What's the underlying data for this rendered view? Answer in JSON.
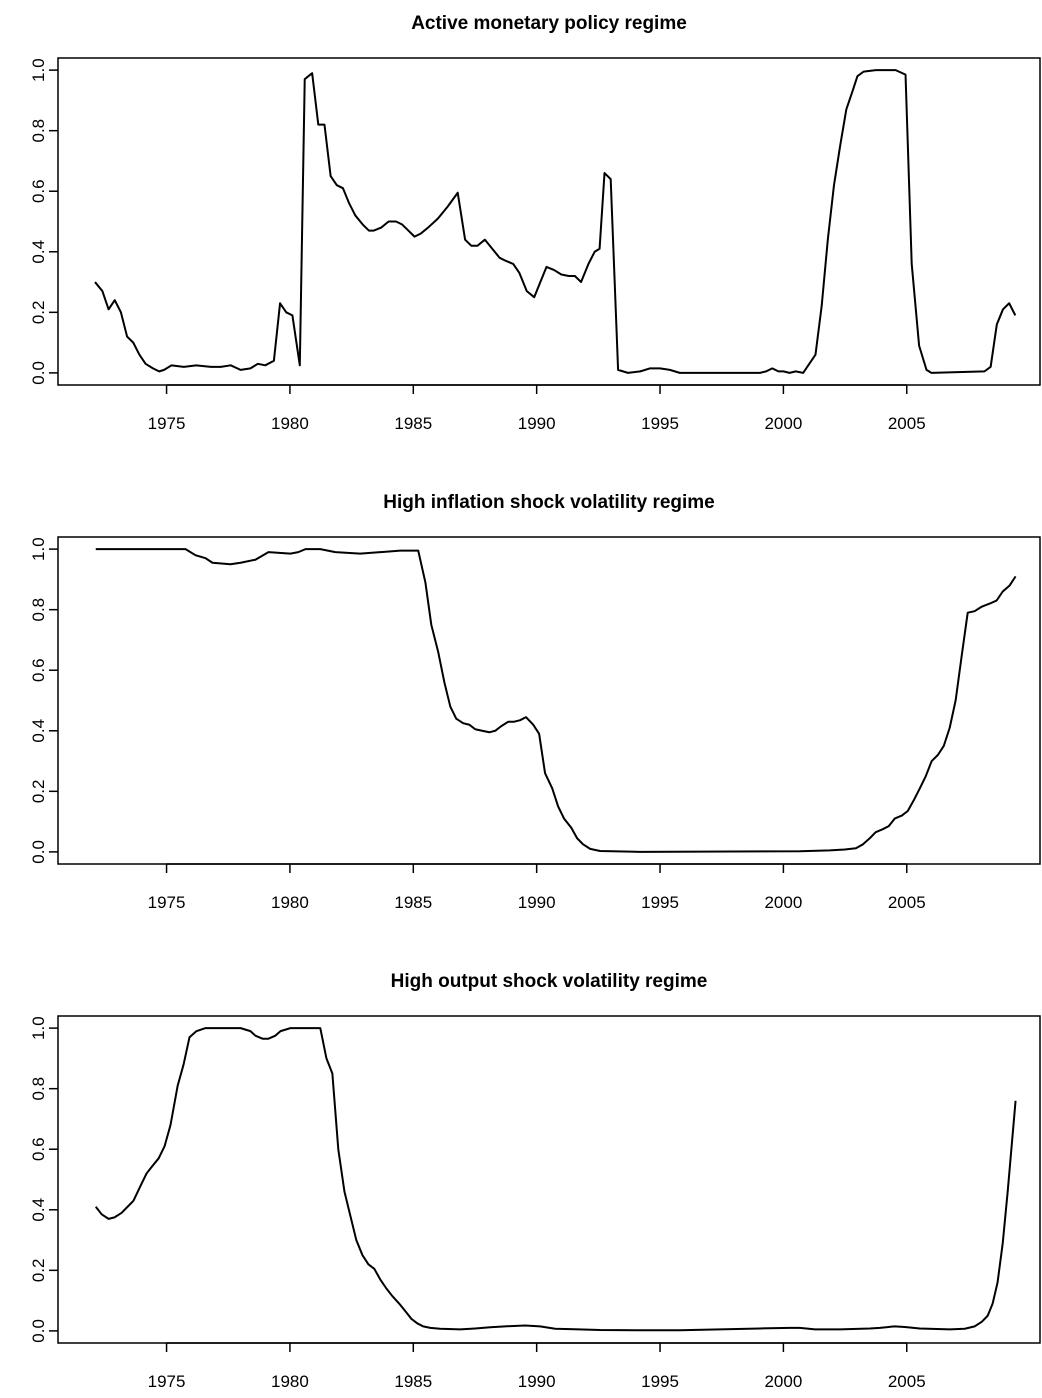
{
  "chart_data": [
    {
      "type": "line",
      "title": "Active monetary policy regime",
      "color": "#000000",
      "xlim": [
        1970.6,
        2010.4
      ],
      "ylim": [
        -0.04,
        1.04
      ],
      "xticks": [
        1975,
        1980,
        1985,
        1990,
        1995,
        2000,
        2005
      ],
      "yticks": [
        {
          "value": 0,
          "label": "0.0"
        },
        {
          "value": 0.2,
          "label": "0.2"
        },
        {
          "value": 0.4,
          "label": "0.4"
        },
        {
          "value": 0.6,
          "label": "0.6"
        },
        {
          "value": 0.8,
          "label": "0.8"
        },
        {
          "value": 1,
          "label": "1.0"
        }
      ],
      "x": [
        1972.1,
        1972.4,
        1972.65,
        1972.9,
        1973.15,
        1973.4,
        1973.65,
        1973.9,
        1974.15,
        1974.45,
        1974.7,
        1974.9,
        1975.2,
        1975.7,
        1976.2,
        1976.8,
        1977.2,
        1977.6,
        1978.0,
        1978.4,
        1978.7,
        1979.0,
        1979.35,
        1979.6,
        1979.85,
        1980.1,
        1980.4,
        1980.6,
        1980.9,
        1981.15,
        1981.4,
        1981.65,
        1981.9,
        1982.15,
        1982.4,
        1982.65,
        1982.95,
        1983.2,
        1983.4,
        1983.7,
        1984.0,
        1984.3,
        1984.55,
        1984.8,
        1985.05,
        1985.3,
        1985.6,
        1986.0,
        1986.4,
        1986.8,
        1987.1,
        1987.35,
        1987.6,
        1987.9,
        1988.2,
        1988.5,
        1988.75,
        1989.05,
        1989.3,
        1989.6,
        1989.9,
        1990.15,
        1990.4,
        1990.7,
        1991.0,
        1991.3,
        1991.55,
        1991.8,
        1992.1,
        1992.35,
        1992.55,
        1992.75,
        1993.0,
        1993.3,
        1993.7,
        1994.2,
        1994.6,
        1995.0,
        1995.4,
        1995.8,
        1997.4,
        1999.05,
        1999.3,
        1999.55,
        1999.8,
        2000.0,
        2000.25,
        2000.5,
        2000.8,
        2001.05,
        2001.3,
        2001.55,
        2001.8,
        2002.05,
        2002.3,
        2002.55,
        2002.8,
        2003.0,
        2003.25,
        2003.75,
        2004.55,
        2004.95,
        2005.2,
        2005.5,
        2005.8,
        2006.0,
        2008.15,
        2008.4,
        2008.65,
        2008.9,
        2009.15,
        2009.4
      ],
      "values": [
        0.3,
        0.27,
        0.21,
        0.24,
        0.2,
        0.12,
        0.1,
        0.06,
        0.03,
        0.015,
        0.005,
        0.01,
        0.025,
        0.02,
        0.025,
        0.02,
        0.02,
        0.025,
        0.01,
        0.015,
        0.03,
        0.025,
        0.04,
        0.23,
        0.2,
        0.19,
        0.025,
        0.97,
        0.99,
        0.82,
        0.82,
        0.65,
        0.62,
        0.61,
        0.56,
        0.52,
        0.49,
        0.47,
        0.47,
        0.48,
        0.5,
        0.5,
        0.49,
        0.47,
        0.45,
        0.46,
        0.48,
        0.51,
        0.55,
        0.595,
        0.44,
        0.42,
        0.42,
        0.44,
        0.41,
        0.38,
        0.37,
        0.36,
        0.33,
        0.27,
        0.25,
        0.3,
        0.35,
        0.34,
        0.325,
        0.32,
        0.32,
        0.3,
        0.36,
        0.4,
        0.41,
        0.66,
        0.64,
        0.01,
        0.0,
        0.005,
        0.015,
        0.015,
        0.01,
        0.0,
        0.0,
        0.0,
        0.005,
        0.015,
        0.005,
        0.005,
        0.0,
        0.005,
        0.0,
        0.03,
        0.06,
        0.22,
        0.44,
        0.62,
        0.75,
        0.87,
        0.93,
        0.98,
        0.995,
        1.0,
        1.0,
        0.985,
        0.36,
        0.09,
        0.01,
        0.0,
        0.005,
        0.02,
        0.16,
        0.21,
        0.23,
        0.19
      ]
    },
    {
      "type": "line",
      "title": "High inflation shock volatility regime",
      "color": "#000000",
      "xlim": [
        1970.6,
        2010.4
      ],
      "ylim": [
        -0.04,
        1.04
      ],
      "xticks": [
        1975,
        1980,
        1985,
        1990,
        1995,
        2000,
        2005
      ],
      "yticks": [
        {
          "value": 0,
          "label": "0.0"
        },
        {
          "value": 0.2,
          "label": "0.2"
        },
        {
          "value": 0.4,
          "label": "0.4"
        },
        {
          "value": 0.6,
          "label": "0.6"
        },
        {
          "value": 0.8,
          "label": "0.8"
        },
        {
          "value": 1,
          "label": "1.0"
        }
      ],
      "x": [
        1972.13,
        1974.35,
        1975.77,
        1976.17,
        1976.58,
        1976.86,
        1977.59,
        1978.0,
        1978.6,
        1979.13,
        1980.02,
        1980.34,
        1980.63,
        1981.23,
        1981.84,
        1982.85,
        1983.66,
        1984.47,
        1985.2,
        1985.49,
        1985.73,
        1986.01,
        1986.26,
        1986.5,
        1986.74,
        1987.02,
        1987.27,
        1987.51,
        1987.79,
        1988.08,
        1988.32,
        1988.56,
        1988.85,
        1989.09,
        1989.33,
        1989.57,
        1989.86,
        1990.1,
        1990.34,
        1990.63,
        1990.87,
        1991.11,
        1991.4,
        1991.64,
        1991.88,
        1992.17,
        1992.57,
        1994.19,
        2000.67,
        2001.88,
        2002.49,
        2002.94,
        2003.22,
        2003.5,
        2003.74,
        2004.03,
        2004.27,
        2004.51,
        2004.8,
        2005.04,
        2005.28,
        2005.53,
        2005.77,
        2006.01,
        2006.26,
        2006.5,
        2006.74,
        2006.98,
        2007.23,
        2007.47,
        2007.75,
        2008.04,
        2008.36,
        2008.64,
        2008.89,
        2009.17,
        2009.41
      ],
      "values": [
        1.0,
        1.0,
        1.0,
        0.98,
        0.97,
        0.955,
        0.95,
        0.955,
        0.965,
        0.99,
        0.985,
        0.99,
        1.0,
        1.0,
        0.99,
        0.985,
        0.99,
        0.995,
        0.995,
        0.89,
        0.75,
        0.66,
        0.56,
        0.48,
        0.44,
        0.425,
        0.42,
        0.405,
        0.4,
        0.395,
        0.4,
        0.415,
        0.43,
        0.43,
        0.435,
        0.445,
        0.42,
        0.39,
        0.26,
        0.21,
        0.15,
        0.11,
        0.08,
        0.045,
        0.025,
        0.01,
        0.003,
        0.0,
        0.002,
        0.005,
        0.008,
        0.012,
        0.025,
        0.045,
        0.065,
        0.075,
        0.085,
        0.11,
        0.12,
        0.135,
        0.17,
        0.21,
        0.25,
        0.3,
        0.32,
        0.35,
        0.41,
        0.5,
        0.65,
        0.79,
        0.795,
        0.81,
        0.82,
        0.83,
        0.86,
        0.88,
        0.91
      ]
    },
    {
      "type": "line",
      "title": "High output shock volatility regime",
      "color": "#000000",
      "xlim": [
        1970.6,
        2010.4
      ],
      "ylim": [
        -0.04,
        1.04
      ],
      "xticks": [
        1975,
        1980,
        1985,
        1990,
        1995,
        2000,
        2005
      ],
      "yticks": [
        {
          "value": 0,
          "label": "0.0"
        },
        {
          "value": 0.2,
          "label": "0.2"
        },
        {
          "value": 0.4,
          "label": "0.4"
        },
        {
          "value": 0.6,
          "label": "0.6"
        },
        {
          "value": 0.8,
          "label": "0.8"
        },
        {
          "value": 1,
          "label": "1.0"
        }
      ],
      "x": [
        1972.13,
        1972.37,
        1972.65,
        1972.89,
        1973.18,
        1973.42,
        1973.66,
        1973.95,
        1974.19,
        1974.43,
        1974.68,
        1974.92,
        1975.16,
        1975.45,
        1975.69,
        1975.93,
        1976.21,
        1976.58,
        1978.0,
        1978.4,
        1978.6,
        1978.89,
        1979.13,
        1979.41,
        1979.62,
        1980.02,
        1981.23,
        1981.48,
        1981.72,
        1981.96,
        1982.21,
        1982.45,
        1982.69,
        1982.94,
        1983.18,
        1983.42,
        1983.66,
        1983.91,
        1984.15,
        1984.43,
        1984.68,
        1984.92,
        1985.16,
        1985.4,
        1985.69,
        1986.09,
        1986.9,
        1987.51,
        1988.12,
        1988.72,
        1989.53,
        1990.14,
        1990.75,
        1991.36,
        1992.57,
        1994.19,
        1995.81,
        1997.43,
        1999.05,
        2000.26,
        2000.67,
        2001.28,
        2002.29,
        2003.5,
        2003.91,
        2004.51,
        2004.92,
        2005.53,
        2006.74,
        2007.35,
        2007.75,
        2008.04,
        2008.28,
        2008.48,
        2008.68,
        2008.89,
        2009.09,
        2009.41
      ],
      "values": [
        0.41,
        0.385,
        0.37,
        0.375,
        0.39,
        0.41,
        0.43,
        0.48,
        0.52,
        0.545,
        0.57,
        0.61,
        0.68,
        0.81,
        0.88,
        0.97,
        0.99,
        1.0,
        1.0,
        0.99,
        0.975,
        0.965,
        0.965,
        0.975,
        0.99,
        1.0,
        1.0,
        0.9,
        0.85,
        0.6,
        0.46,
        0.38,
        0.3,
        0.25,
        0.22,
        0.205,
        0.17,
        0.14,
        0.115,
        0.09,
        0.065,
        0.04,
        0.025,
        0.015,
        0.01,
        0.007,
        0.005,
        0.008,
        0.012,
        0.015,
        0.018,
        0.015,
        0.007,
        0.006,
        0.003,
        0.002,
        0.002,
        0.005,
        0.008,
        0.01,
        0.01,
        0.005,
        0.005,
        0.008,
        0.01,
        0.015,
        0.013,
        0.008,
        0.005,
        0.007,
        0.015,
        0.03,
        0.05,
        0.09,
        0.16,
        0.29,
        0.46,
        0.76
      ]
    }
  ]
}
